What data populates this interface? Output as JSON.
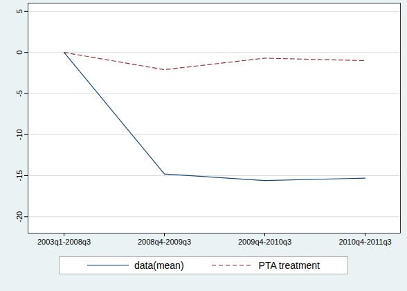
{
  "chart_data": {
    "type": "line",
    "categories": [
      "2003q1-2008q3",
      "2008q4-2009q3",
      "2009q4-2010q3",
      "2010q4-2011q3"
    ],
    "series": [
      {
        "name": "data(mean)",
        "color": "#1a476f",
        "line_style": "solid",
        "values": [
          0,
          -14.8,
          -15.6,
          -15.3
        ]
      },
      {
        "name": "PTA treatment",
        "color": "#90353b",
        "line_style": "dashed",
        "values": [
          0,
          -2.1,
          -0.7,
          -1.0
        ]
      }
    ],
    "ylim": [
      -22,
      6
    ],
    "yticks": [
      -20,
      -15,
      -10,
      -5,
      0,
      5
    ],
    "grid": true,
    "legend": "bottom"
  }
}
